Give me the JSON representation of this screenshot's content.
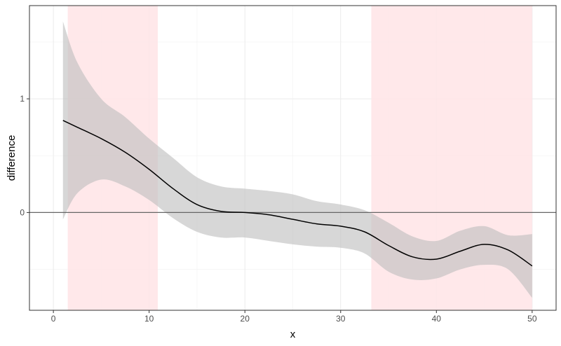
{
  "chart_data": {
    "type": "line",
    "title": "",
    "xlabel": "x",
    "ylabel": "difference",
    "xlim": [
      -2.5,
      52.5
    ],
    "ylim": [
      -0.86,
      1.82
    ],
    "x_ticks": [
      0,
      10,
      20,
      30,
      40,
      50
    ],
    "y_ticks": [
      0,
      1
    ],
    "grid": true,
    "reference_line_y": 0,
    "highlight_regions": [
      {
        "x_start": 1.5,
        "x_end": 10.9,
        "color": "#ffe4e6"
      },
      {
        "x_start": 33.2,
        "x_end": 50,
        "color": "#ffe4e6"
      }
    ],
    "series": [
      {
        "x": [
          1,
          2.5,
          5,
          7.5,
          10,
          12.5,
          15,
          17.5,
          20,
          22.5,
          25,
          27.5,
          30,
          32.5,
          35,
          37.5,
          40,
          42.5,
          45,
          47.5,
          50
        ],
        "y": [
          0.81,
          0.75,
          0.65,
          0.53,
          0.38,
          0.21,
          0.07,
          0.01,
          0.0,
          -0.02,
          -0.06,
          -0.1,
          -0.12,
          -0.17,
          -0.29,
          -0.39,
          -0.41,
          -0.34,
          -0.28,
          -0.33,
          -0.47
        ],
        "lower": [
          -0.06,
          0.17,
          0.29,
          0.23,
          0.11,
          -0.05,
          -0.17,
          -0.22,
          -0.22,
          -0.25,
          -0.28,
          -0.3,
          -0.31,
          -0.36,
          -0.52,
          -0.59,
          -0.58,
          -0.5,
          -0.46,
          -0.5,
          -0.75
        ],
        "upper": [
          1.68,
          1.32,
          1.0,
          0.84,
          0.65,
          0.48,
          0.31,
          0.23,
          0.21,
          0.19,
          0.16,
          0.1,
          0.07,
          0.02,
          -0.09,
          -0.21,
          -0.25,
          -0.16,
          -0.12,
          -0.2,
          -0.19
        ],
        "line_color": "#000000",
        "band_color": "#bfbfbf"
      }
    ]
  }
}
